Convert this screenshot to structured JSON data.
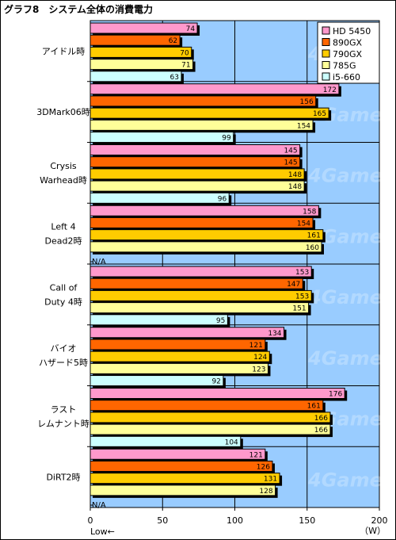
{
  "chart_data": {
    "type": "bar",
    "orientation": "horizontal",
    "title": "グラフ8　システム全体の消費電力",
    "categories": [
      [
        "アイドル時"
      ],
      [
        "3DMark06時"
      ],
      [
        "Crysis",
        "Warhead時"
      ],
      [
        "Left 4",
        "Dead2時"
      ],
      [
        "Call of",
        "Duty 4時"
      ],
      [
        "バイオ",
        "ハザード5時"
      ],
      [
        "ラスト",
        "レムナント時"
      ],
      [
        "DiRT2時"
      ]
    ],
    "series": [
      {
        "name": "HD 5450",
        "color": "#ff99cc",
        "values": [
          74,
          172,
          145,
          158,
          153,
          134,
          176,
          121
        ]
      },
      {
        "name": "890GX",
        "color": "#ff6600",
        "values": [
          62,
          156,
          145,
          154,
          147,
          121,
          161,
          126
        ]
      },
      {
        "name": "790GX",
        "color": "#ffcc00",
        "values": [
          70,
          165,
          148,
          161,
          153,
          124,
          166,
          131
        ]
      },
      {
        "name": "785G",
        "color": "#ffff99",
        "values": [
          71,
          154,
          148,
          160,
          151,
          123,
          166,
          128
        ]
      },
      {
        "name": "i5-660",
        "color": "#ccffff",
        "values": [
          63,
          99,
          96,
          null,
          95,
          92,
          104,
          null
        ]
      }
    ],
    "na_label": "N/A",
    "xlim": [
      0,
      200
    ],
    "xticks": [
      "0",
      "50",
      "100",
      "150",
      "200"
    ],
    "unit_label": "（W）",
    "low_label": "Low←",
    "watermark": "4Gamer.net",
    "plot_bg": "#99ccff",
    "grid": true,
    "legend_position": "top-right"
  }
}
